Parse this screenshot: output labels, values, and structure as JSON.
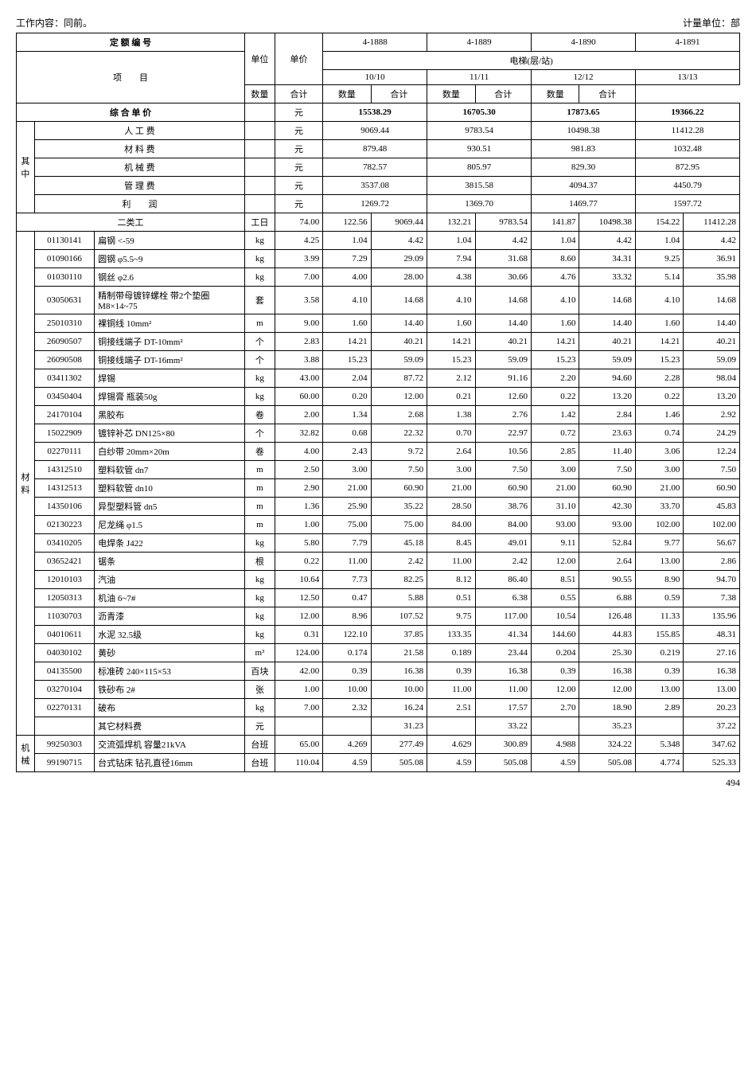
{
  "top": {
    "left": "工作内容：同前。",
    "right": "计量单位：部"
  },
  "header": {
    "code_label": "定 额 编 号",
    "project_label": "项　　目",
    "unit_label": "单位",
    "price_label": "单价",
    "codes": [
      "4-1888",
      "4-1889",
      "4-1890",
      "4-1891"
    ],
    "group_label": "电梯(层/站)",
    "specs": [
      "10/10",
      "11/11",
      "12/12",
      "13/13"
    ],
    "qty_label": "数量",
    "sum_label": "合计",
    "total_label": "综 合 单 价",
    "total_unit": "元",
    "totals": [
      "15538.29",
      "16705.30",
      "17873.65",
      "19366.22"
    ]
  },
  "qizhong": {
    "side_label": "其中",
    "rows": [
      {
        "name": "人 工 费",
        "unit": "元",
        "vals": [
          "9069.44",
          "9783.54",
          "10498.38",
          "11412.28"
        ]
      },
      {
        "name": "材 料 费",
        "unit": "元",
        "vals": [
          "879.48",
          "930.51",
          "981.83",
          "1032.48"
        ]
      },
      {
        "name": "机 械 费",
        "unit": "元",
        "vals": [
          "782.57",
          "805.97",
          "829.30",
          "872.95"
        ]
      },
      {
        "name": "管 理 费",
        "unit": "元",
        "vals": [
          "3537.08",
          "3815.58",
          "4094.37",
          "4450.79"
        ]
      },
      {
        "name": "利　　润",
        "unit": "元",
        "vals": [
          "1269.72",
          "1369.70",
          "1469.77",
          "1597.72"
        ]
      }
    ]
  },
  "labor": {
    "name": "二类工",
    "unit": "工日",
    "price": "74.00",
    "cells": [
      "122.56",
      "9069.44",
      "132.21",
      "9783.54",
      "141.87",
      "10498.38",
      "154.22",
      "11412.28"
    ]
  },
  "material_label": "材料",
  "machine_label": "机械",
  "materials": [
    {
      "code": "01130141",
      "name": "扁钢 <-59",
      "unit": "kg",
      "price": "4.25",
      "c": [
        "1.04",
        "4.42",
        "1.04",
        "4.42",
        "1.04",
        "4.42",
        "1.04",
        "4.42"
      ]
    },
    {
      "code": "01090166",
      "name": "圆钢 φ5.5~9",
      "unit": "kg",
      "price": "3.99",
      "c": [
        "7.29",
        "29.09",
        "7.94",
        "31.68",
        "8.60",
        "34.31",
        "9.25",
        "36.91"
      ]
    },
    {
      "code": "01030110",
      "name": "钢丝 φ2.6",
      "unit": "kg",
      "price": "7.00",
      "c": [
        "4.00",
        "28.00",
        "4.38",
        "30.66",
        "4.76",
        "33.32",
        "5.14",
        "35.98"
      ]
    },
    {
      "code": "03050631",
      "name": "精制带母镀锌螺栓 带2个垫圈 M8×14~75",
      "unit": "套",
      "price": "3.58",
      "c": [
        "4.10",
        "14.68",
        "4.10",
        "14.68",
        "4.10",
        "14.68",
        "4.10",
        "14.68"
      ]
    },
    {
      "code": "25010310",
      "name": "裸铜线 10mm²",
      "unit": "m",
      "price": "9.00",
      "c": [
        "1.60",
        "14.40",
        "1.60",
        "14.40",
        "1.60",
        "14.40",
        "1.60",
        "14.40"
      ]
    },
    {
      "code": "26090507",
      "name": "铜接线端子 DT-10mm²",
      "unit": "个",
      "price": "2.83",
      "c": [
        "14.21",
        "40.21",
        "14.21",
        "40.21",
        "14.21",
        "40.21",
        "14.21",
        "40.21"
      ]
    },
    {
      "code": "26090508",
      "name": "铜接线端子 DT-16mm²",
      "unit": "个",
      "price": "3.88",
      "c": [
        "15.23",
        "59.09",
        "15.23",
        "59.09",
        "15.23",
        "59.09",
        "15.23",
        "59.09"
      ]
    },
    {
      "code": "03411302",
      "name": "焊锡",
      "unit": "kg",
      "price": "43.00",
      "c": [
        "2.04",
        "87.72",
        "2.12",
        "91.16",
        "2.20",
        "94.60",
        "2.28",
        "98.04"
      ]
    },
    {
      "code": "03450404",
      "name": "焊锡膏 瓶装50g",
      "unit": "kg",
      "price": "60.00",
      "c": [
        "0.20",
        "12.00",
        "0.21",
        "12.60",
        "0.22",
        "13.20",
        "0.22",
        "13.20"
      ]
    },
    {
      "code": "24170104",
      "name": "黑胶布",
      "unit": "卷",
      "price": "2.00",
      "c": [
        "1.34",
        "2.68",
        "1.38",
        "2.76",
        "1.42",
        "2.84",
        "1.46",
        "2.92"
      ]
    },
    {
      "code": "15022909",
      "name": "镀锌补芯 DN125×80",
      "unit": "个",
      "price": "32.82",
      "c": [
        "0.68",
        "22.32",
        "0.70",
        "22.97",
        "0.72",
        "23.63",
        "0.74",
        "24.29"
      ]
    },
    {
      "code": "02270111",
      "name": "白纱带 20mm×20m",
      "unit": "卷",
      "price": "4.00",
      "c": [
        "2.43",
        "9.72",
        "2.64",
        "10.56",
        "2.85",
        "11.40",
        "3.06",
        "12.24"
      ]
    },
    {
      "code": "14312510",
      "name": "塑料软管 dn7",
      "unit": "m",
      "price": "2.50",
      "c": [
        "3.00",
        "7.50",
        "3.00",
        "7.50",
        "3.00",
        "7.50",
        "3.00",
        "7.50"
      ]
    },
    {
      "code": "14312513",
      "name": "塑料软管 dn10",
      "unit": "m",
      "price": "2.90",
      "c": [
        "21.00",
        "60.90",
        "21.00",
        "60.90",
        "21.00",
        "60.90",
        "21.00",
        "60.90"
      ]
    },
    {
      "code": "14350106",
      "name": "异型塑料管 dn5",
      "unit": "m",
      "price": "1.36",
      "c": [
        "25.90",
        "35.22",
        "28.50",
        "38.76",
        "31.10",
        "42.30",
        "33.70",
        "45.83"
      ]
    },
    {
      "code": "02130223",
      "name": "尼龙绳 φ1.5",
      "unit": "m",
      "price": "1.00",
      "c": [
        "75.00",
        "75.00",
        "84.00",
        "84.00",
        "93.00",
        "93.00",
        "102.00",
        "102.00"
      ]
    },
    {
      "code": "03410205",
      "name": "电焊条 J422",
      "unit": "kg",
      "price": "5.80",
      "c": [
        "7.79",
        "45.18",
        "8.45",
        "49.01",
        "9.11",
        "52.84",
        "9.77",
        "56.67"
      ]
    },
    {
      "code": "03652421",
      "name": "锯条",
      "unit": "根",
      "price": "0.22",
      "c": [
        "11.00",
        "2.42",
        "11.00",
        "2.42",
        "12.00",
        "2.64",
        "13.00",
        "2.86"
      ]
    },
    {
      "code": "12010103",
      "name": "汽油",
      "unit": "kg",
      "price": "10.64",
      "c": [
        "7.73",
        "82.25",
        "8.12",
        "86.40",
        "8.51",
        "90.55",
        "8.90",
        "94.70"
      ]
    },
    {
      "code": "12050313",
      "name": "机油 6~7#",
      "unit": "kg",
      "price": "12.50",
      "c": [
        "0.47",
        "5.88",
        "0.51",
        "6.38",
        "0.55",
        "6.88",
        "0.59",
        "7.38"
      ]
    },
    {
      "code": "11030703",
      "name": "沥青漆",
      "unit": "kg",
      "price": "12.00",
      "c": [
        "8.96",
        "107.52",
        "9.75",
        "117.00",
        "10.54",
        "126.48",
        "11.33",
        "135.96"
      ]
    },
    {
      "code": "04010611",
      "name": "水泥 32.5级",
      "unit": "kg",
      "price": "0.31",
      "c": [
        "122.10",
        "37.85",
        "133.35",
        "41.34",
        "144.60",
        "44.83",
        "155.85",
        "48.31"
      ]
    },
    {
      "code": "04030102",
      "name": "黄砂",
      "unit": "m³",
      "price": "124.00",
      "c": [
        "0.174",
        "21.58",
        "0.189",
        "23.44",
        "0.204",
        "25.30",
        "0.219",
        "27.16"
      ]
    },
    {
      "code": "04135500",
      "name": "标准砖 240×115×53",
      "unit": "百块",
      "price": "42.00",
      "c": [
        "0.39",
        "16.38",
        "0.39",
        "16.38",
        "0.39",
        "16.38",
        "0.39",
        "16.38"
      ]
    },
    {
      "code": "03270104",
      "name": "铁砂布 2#",
      "unit": "张",
      "price": "1.00",
      "c": [
        "10.00",
        "10.00",
        "11.00",
        "11.00",
        "12.00",
        "12.00",
        "13.00",
        "13.00"
      ]
    },
    {
      "code": "02270131",
      "name": "破布",
      "unit": "kg",
      "price": "7.00",
      "c": [
        "2.32",
        "16.24",
        "2.51",
        "17.57",
        "2.70",
        "18.90",
        "2.89",
        "20.23"
      ]
    },
    {
      "code": "",
      "name": "其它材料费",
      "unit": "元",
      "price": "",
      "c": [
        "",
        "31.23",
        "",
        "33.22",
        "",
        "35.23",
        "",
        "37.22"
      ]
    }
  ],
  "machines": [
    {
      "code": "99250303",
      "name": "交流弧焊机 容量21kVA",
      "unit": "台班",
      "price": "65.00",
      "c": [
        "4.269",
        "277.49",
        "4.629",
        "300.89",
        "4.988",
        "324.22",
        "5.348",
        "347.62"
      ]
    },
    {
      "code": "99190715",
      "name": "台式钻床 钻孔直径16mm",
      "unit": "台班",
      "price": "110.04",
      "c": [
        "4.59",
        "505.08",
        "4.59",
        "505.08",
        "4.59",
        "505.08",
        "4.774",
        "525.33"
      ]
    }
  ],
  "page": "494"
}
